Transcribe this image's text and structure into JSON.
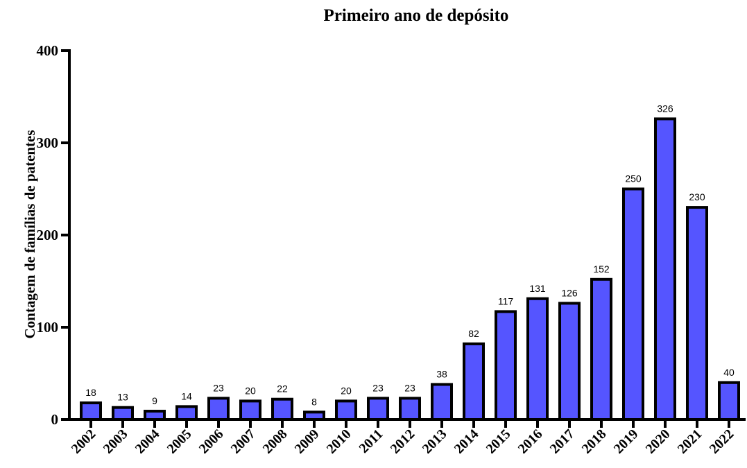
{
  "chart_data": {
    "type": "bar",
    "title": "Primeiro ano de depósito",
    "xlabel": "",
    "ylabel": "Contagem de famílias de patentes",
    "ylim": [
      0,
      400
    ],
    "yticks": [
      0,
      100,
      200,
      300,
      400
    ],
    "grid": false,
    "categories": [
      "2002",
      "2003",
      "2004",
      "2005",
      "2006",
      "2007",
      "2008",
      "2009",
      "2010",
      "2011",
      "2012",
      "2013",
      "2014",
      "2015",
      "2016",
      "2017",
      "2018",
      "2019",
      "2020",
      "2021",
      "2022"
    ],
    "values": [
      18,
      13,
      9,
      14,
      23,
      20,
      22,
      8,
      20,
      23,
      23,
      38,
      82,
      117,
      131,
      126,
      152,
      250,
      326,
      230,
      40
    ],
    "data_labels": [
      "18",
      "13",
      "9",
      "14",
      "23",
      "20",
      "22",
      "8",
      "20",
      "23",
      "23",
      "38",
      "82",
      "117",
      "131",
      "126",
      "152",
      "250",
      "326",
      "230",
      "40"
    ],
    "bar_color": "#5555ff",
    "edge_color": "#000000"
  }
}
